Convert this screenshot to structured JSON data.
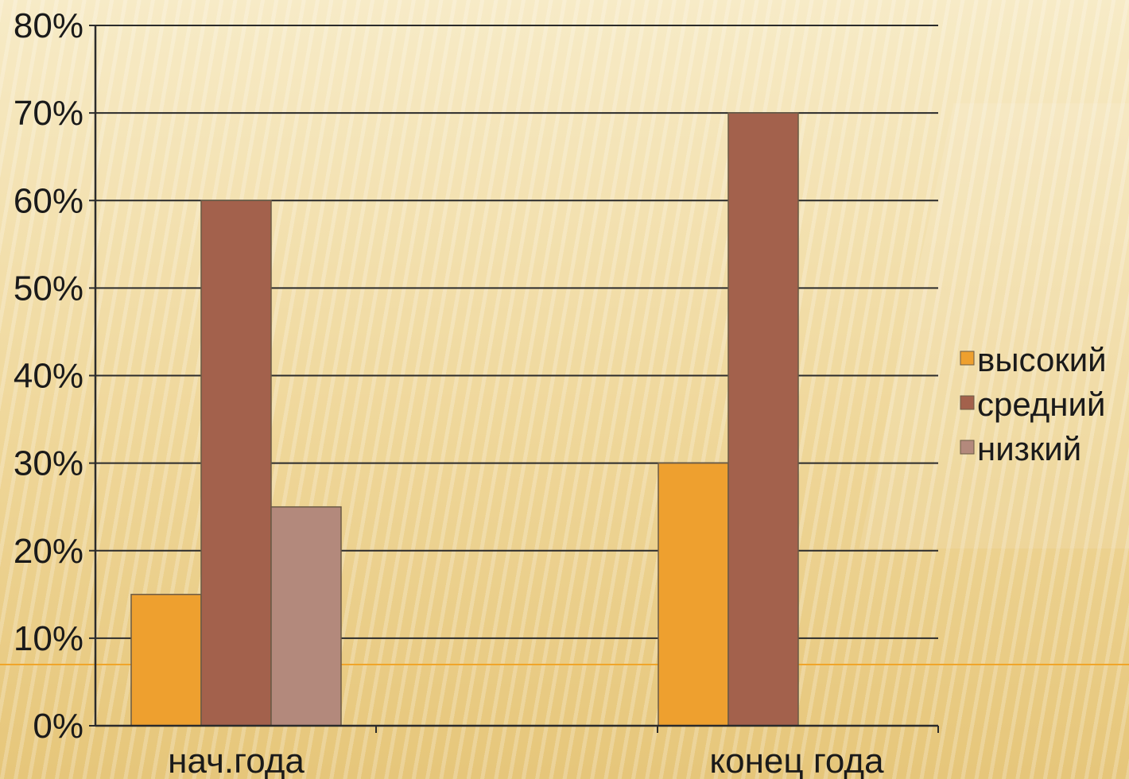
{
  "chart_data": {
    "type": "bar",
    "categories": [
      "нач.года",
      "конец года"
    ],
    "series": [
      {
        "name": "высокий",
        "values": [
          15,
          30
        ],
        "color": "#eea02f"
      },
      {
        "name": "средний",
        "values": [
          60,
          70
        ],
        "color": "#a3614c"
      },
      {
        "name": "низкий",
        "values": [
          25,
          null
        ],
        "color": "#b3897c"
      }
    ],
    "ylim": [
      0,
      80
    ],
    "yticks": [
      "0%",
      "10%",
      "20%",
      "30%",
      "40%",
      "50%",
      "60%",
      "70%",
      "80%"
    ],
    "grid": true,
    "legend": "right"
  }
}
